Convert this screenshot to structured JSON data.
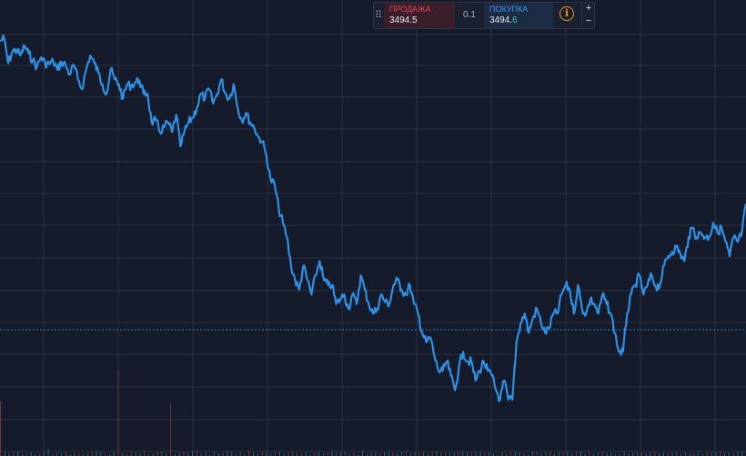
{
  "trade_panel": {
    "sell_label": "ПРОДАЖА",
    "sell_price": "3494.5",
    "spread": "0.1",
    "buy_label": "ПОКУПКА",
    "buy_price_main": "3494.",
    "buy_price_tail": "6",
    "info_glyph": "i",
    "zoom_in": "+",
    "zoom_out": "−",
    "drag_icon": "drag-dots-icon"
  },
  "colors": {
    "background": "#151b2b",
    "grid": "#2a3142",
    "line": "#2f8fe3",
    "sell": "#e0455a",
    "buy": "#3a9af0",
    "price_line": "#2f8fe3",
    "info": "#e89a1c"
  },
  "chart_data": {
    "type": "line",
    "grid": true,
    "price_line": "dotted horizontal at current level",
    "volume_bars": true,
    "series": [
      {
        "values": [
          95,
          92,
          118,
          106,
          104,
          110,
          100,
          108,
          115,
          122,
          112,
          118,
          119,
          116,
          125,
          117,
          120,
          130,
          120,
          135,
          145,
          125,
          110,
          118,
          128,
          140,
          150,
          125,
          135,
          140,
          155,
          140,
          142,
          138,
          136,
          150,
          150,
          180,
          178,
          190,
          185,
          180,
          190,
          172,
          205,
          190,
          180,
          175,
          165,
          150,
          155,
          145,
          160,
          150,
          135,
          150,
          155,
          140,
          165,
          178,
          170,
          180,
          185,
          195,
          200,
          215,
          240,
          245,
          270,
          285,
          300,
          330,
          345,
          355,
          330,
          345,
          360,
          340,
          325,
          345,
          350,
          350,
          370,
          365,
          360,
          375,
          360,
          370,
          340,
          355,
          370,
          380,
          375,
          360,
          368,
          370,
          350,
          345,
          355,
          360,
          350,
          370,
          380,
          400,
          410,
          405,
          425,
          440,
          440,
          430,
          445,
          460,
          435,
          420,
          430,
          430,
          450,
          440,
          430,
          440,
          445,
          460,
          470,
          450,
          470,
          470,
          410,
          390,
          380,
          400,
          385,
          375,
          390,
          400,
          395,
          380,
          380,
          360,
          350,
          355,
          380,
          350,
          375,
          380,
          365,
          370,
          380,
          360,
          370,
          380,
          400,
          420,
          420,
          380,
          360,
          350,
          340,
          360,
          350,
          340,
          352,
          350,
          330,
          320,
          315,
          310,
          318,
          325,
          300,
          290,
          300,
          295,
          300,
          300,
          285,
          295,
          290,
          305,
          320,
          300,
          305,
          295,
          265
        ],
        "x_start": 0,
        "x_step": 5
      }
    ],
    "volume": [
      60,
      5,
      3,
      4,
      6,
      2,
      3,
      5,
      2,
      3,
      4,
      8,
      2,
      3,
      3,
      5,
      2,
      4,
      3,
      2,
      3,
      5,
      6,
      4,
      3,
      2,
      4,
      95,
      3,
      2,
      5,
      4,
      3,
      6,
      2,
      3,
      4,
      5,
      3,
      58,
      2,
      4,
      5,
      3,
      6,
      7,
      3,
      4,
      2,
      5,
      3,
      4,
      6,
      5,
      3,
      4,
      2,
      6,
      4,
      3,
      5,
      4,
      3,
      4,
      5,
      3,
      4,
      5,
      3,
      3,
      4,
      2,
      4,
      5,
      3,
      4,
      6,
      3,
      4,
      5,
      3,
      4,
      2,
      6,
      3,
      4,
      5,
      3,
      4,
      5,
      4,
      3,
      4,
      5,
      3,
      4,
      4,
      5,
      3,
      4,
      5,
      3,
      4,
      3,
      4,
      4,
      5,
      4,
      3,
      4,
      5,
      3,
      4,
      3,
      2,
      4,
      3,
      4,
      5,
      4,
      3,
      2,
      4,
      5,
      3,
      4,
      5,
      3,
      4,
      4,
      5,
      3,
      4,
      5,
      3,
      4,
      3,
      4,
      5,
      3,
      4,
      3,
      2,
      4,
      3,
      4,
      5,
      4,
      3,
      4,
      5,
      3,
      4,
      3,
      4,
      5,
      3,
      4,
      3,
      4,
      5,
      3,
      4,
      3,
      4,
      5,
      3,
      4,
      3,
      4,
      5
    ]
  }
}
